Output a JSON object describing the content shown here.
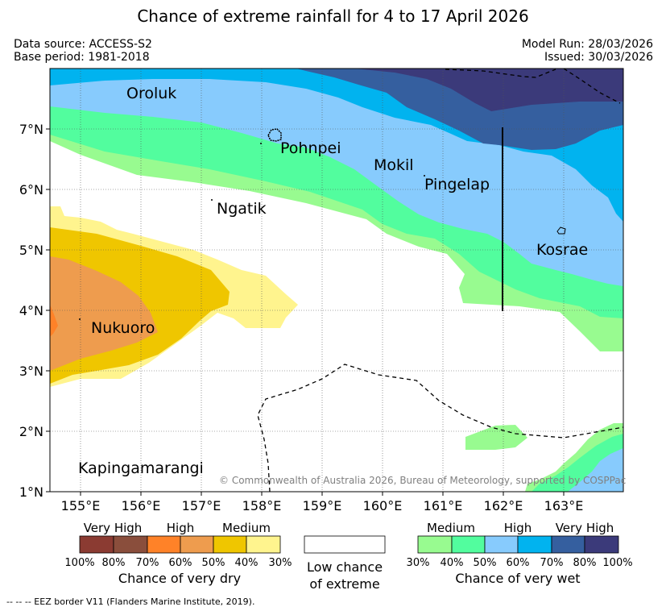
{
  "title": "Chance of extreme rainfall for 4 to 17 April 2026",
  "meta": {
    "data_source": "Data source: ACCESS-S2",
    "base_period": "Base period: 1981-2018",
    "model_run": "Model Run: 28/03/2026",
    "issued": "Issued: 30/03/2026"
  },
  "map": {
    "lon_ticks": [
      "155°E",
      "156°E",
      "157°E",
      "158°E",
      "159°E",
      "160°E",
      "161°E",
      "162°E",
      "163°E"
    ],
    "lat_ticks": [
      "7°N",
      "6°N",
      "5°N",
      "4°N",
      "3°N",
      "2°N",
      "1°N"
    ],
    "places": [
      {
        "name": "Oroluk"
      },
      {
        "name": "Pohnpei"
      },
      {
        "name": "Mokil"
      },
      {
        "name": "Pingelap"
      },
      {
        "name": "Ngatik"
      },
      {
        "name": "Kosrae"
      },
      {
        "name": "Nukuoro"
      },
      {
        "name": "Kapingamarangi"
      }
    ],
    "copyright": "© Commonwealth of Australia 2026, Bureau of Meteorology, supported by COSPPac"
  },
  "colors": {
    "dry_very_high_100": "#8b3b32",
    "dry_very_high_80": "#8a4e3c",
    "dry_high_70": "#ff8228",
    "dry_high_60": "#ee9c4e",
    "dry_medium_50": "#efc600",
    "dry_medium_40": "#fff48e",
    "wet_medium_30": "#98fb90",
    "wet_medium_40": "#52fd9e",
    "wet_high_50": "#87cbfd",
    "wet_high_60": "#01b3ef",
    "wet_very_high_70": "#355f9f",
    "wet_very_high_80": "#3b3a7a"
  },
  "legend": {
    "dry": {
      "categories": [
        "Very High",
        "High",
        "Medium"
      ],
      "percents": [
        "100%",
        "80%",
        "70%",
        "60%",
        "50%",
        "40%",
        "30%"
      ],
      "title": "Chance of very dry"
    },
    "low": {
      "line1": "Low chance",
      "line2": "of extreme"
    },
    "wet": {
      "categories": [
        "Medium",
        "High",
        "Very High"
      ],
      "percents": [
        "30%",
        "40%",
        "50%",
        "60%",
        "70%",
        "80%",
        "100%"
      ],
      "title": "Chance of very wet"
    }
  },
  "footnote": "-- -- -- EEZ border V11 (Flanders Marine Institute, 2019)."
}
